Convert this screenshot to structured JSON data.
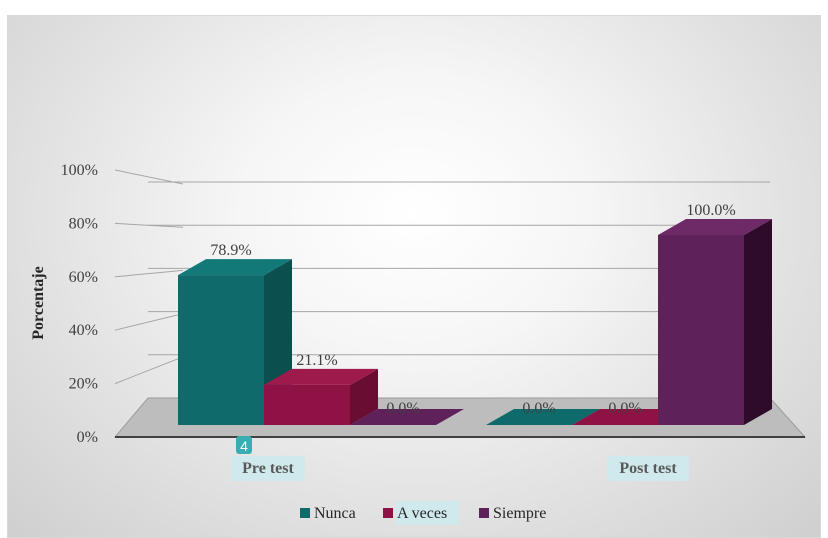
{
  "chart_data": {
    "type": "bar",
    "style": "3d-clustered-column",
    "categories": [
      "Pre test",
      "Post test"
    ],
    "series": [
      {
        "name": "Nunca",
        "values": [
          78.9,
          0.0
        ],
        "color": "#0f6b6b",
        "side": "#0b4f4f",
        "top": "#137878",
        "labels": [
          "78.9%",
          "0.0%"
        ]
      },
      {
        "name": "A veces",
        "values": [
          21.1,
          0.0
        ],
        "color": "#8e1243",
        "side": "#6a0d32",
        "top": "#9e1a4d",
        "labels": [
          "21.1%",
          "0.0%"
        ]
      },
      {
        "name": "Siempre",
        "values": [
          0.0,
          100.0
        ],
        "color": "#5e2159",
        "side": "#2e0b2b",
        "top": "#6d2a67",
        "labels": [
          "0.0%",
          "100.0%"
        ]
      }
    ],
    "ylabel": "Porcentaje",
    "ylim": [
      0,
      100
    ],
    "yticks": [
      "0%",
      "20%",
      "40%",
      "60%",
      "80%",
      "100%"
    ],
    "grid": true,
    "legend_position": "bottom",
    "badge": "4"
  }
}
